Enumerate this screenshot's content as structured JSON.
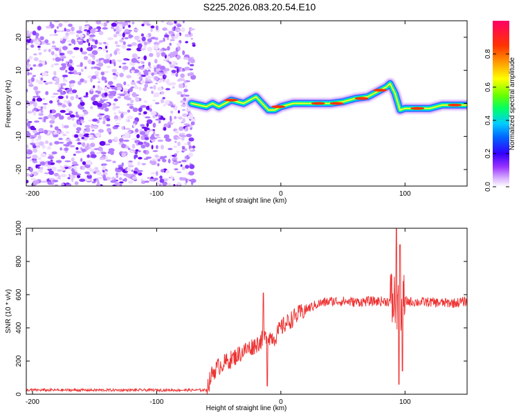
{
  "title": "S225.2026.083.20.54.E10",
  "chart_data": [
    {
      "type": "heatmap",
      "name": "spectrogram",
      "xlabel": "Height of straight line (km)",
      "ylabel": "Frequency (Hz)",
      "xlim": [
        -205,
        150
      ],
      "ylim": [
        -25,
        25
      ],
      "xticks": [
        -200,
        -100,
        0,
        100
      ],
      "yticks": [
        -20,
        -10,
        0,
        10,
        20
      ],
      "noise_region_x": [
        -205,
        -70
      ],
      "ridge": {
        "description_points_x": [
          -72,
          -60,
          -55,
          -50,
          -45,
          -40,
          -35,
          -30,
          -25,
          -20,
          -15,
          -10,
          -5,
          0,
          10,
          20,
          30,
          40,
          50,
          60,
          70,
          80,
          85,
          88,
          92,
          96,
          100,
          110,
          120,
          130,
          140,
          150
        ],
        "description_points_y": [
          0,
          -1,
          0,
          -1,
          0,
          1,
          0.5,
          0,
          1,
          2,
          0,
          -2,
          -2,
          -1,
          0,
          0,
          0,
          0,
          0.5,
          1.5,
          2,
          4,
          5,
          6,
          3,
          -2,
          -1.5,
          -1.5,
          -1.5,
          -0.5,
          -0.5,
          -0.5
        ]
      },
      "colorbar": {
        "label": "Normalized spectral amplitude",
        "range": [
          0,
          1
        ],
        "ticks": [
          0.0,
          0.2,
          0.4,
          0.6,
          0.8
        ],
        "colors": [
          "#ffffff",
          "#cc99ff",
          "#6600ff",
          "#0000ff",
          "#00ccff",
          "#00ff66",
          "#99ff00",
          "#ffff00",
          "#ff9900",
          "#ff0000",
          "#ff0066"
        ]
      }
    },
    {
      "type": "line",
      "name": "snr",
      "xlabel": "Height of straight line (km)",
      "ylabel": "SNR (10 * v/v)",
      "xlim": [
        -205,
        150
      ],
      "ylim": [
        0,
        1000
      ],
      "xticks": [
        -200,
        -100,
        0,
        100
      ],
      "yticks": [
        0,
        200,
        400,
        600,
        800,
        1000
      ],
      "color": "#ee3333",
      "trend_x": [
        -205,
        -60,
        -55,
        -50,
        -40,
        -30,
        -20,
        -15,
        -10,
        -5,
        0,
        10,
        20,
        30,
        40,
        50,
        60,
        70,
        80,
        90,
        95,
        100,
        110,
        120,
        130,
        140,
        150
      ],
      "trend_y": [
        25,
        25,
        130,
        170,
        210,
        260,
        300,
        330,
        350,
        340,
        400,
        460,
        510,
        545,
        560,
        560,
        555,
        560,
        560,
        560,
        560,
        560,
        555,
        555,
        550,
        550,
        560
      ],
      "spikes": [
        {
          "x": -14,
          "y": 610
        },
        {
          "x": -11,
          "y": 50
        },
        {
          "x": 93,
          "y": 1000
        },
        {
          "x": 95,
          "y": 60
        },
        {
          "x": 96,
          "y": 900
        },
        {
          "x": 98,
          "y": 140
        }
      ]
    }
  ]
}
